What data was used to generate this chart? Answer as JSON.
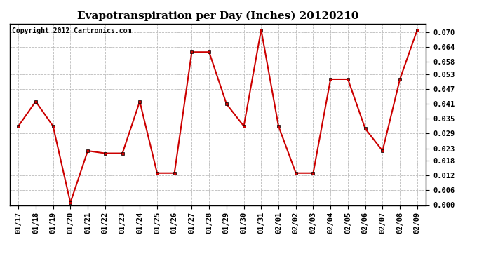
{
  "title": "Evapotranspiration per Day (Inches) 20120210",
  "copyright_text": "Copyright 2012 Cartronics.com",
  "x_labels": [
    "01/17",
    "01/18",
    "01/19",
    "01/20",
    "01/21",
    "01/22",
    "01/23",
    "01/24",
    "01/25",
    "01/26",
    "01/27",
    "01/28",
    "01/29",
    "01/30",
    "01/31",
    "02/01",
    "02/02",
    "02/03",
    "02/04",
    "02/05",
    "02/06",
    "02/07",
    "02/08",
    "02/09"
  ],
  "y_values": [
    0.032,
    0.042,
    0.032,
    0.001,
    0.022,
    0.021,
    0.021,
    0.042,
    0.013,
    0.013,
    0.062,
    0.062,
    0.041,
    0.032,
    0.071,
    0.032,
    0.013,
    0.013,
    0.051,
    0.051,
    0.031,
    0.022,
    0.051,
    0.071
  ],
  "line_color": "#cc0000",
  "marker_color": "#000000",
  "background_color": "#ffffff",
  "grid_color": "#bbbbbb",
  "ylim": [
    0.0,
    0.0735
  ],
  "yticks": [
    0.0,
    0.006,
    0.012,
    0.018,
    0.023,
    0.029,
    0.035,
    0.041,
    0.047,
    0.053,
    0.058,
    0.064,
    0.07
  ],
  "title_fontsize": 11,
  "copyright_fontsize": 7,
  "tick_fontsize": 7.5
}
